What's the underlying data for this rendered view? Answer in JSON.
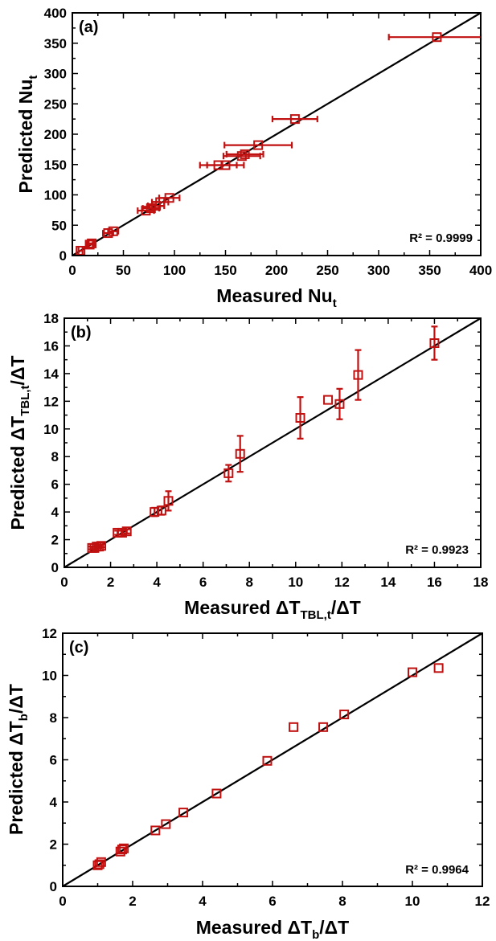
{
  "panels": [
    {
      "panel_label": "(a)",
      "r2_text": "R² = 0.9999",
      "x_title": {
        "base": "Measured Nu",
        "sub": "t",
        "suffix": ""
      },
      "y_title": {
        "base": "Predicted Nu",
        "sub": "t",
        "suffix": ""
      }
    },
    {
      "panel_label": "(b)",
      "r2_text": "R² = 0.9923",
      "x_title": {
        "base": "Measured ΔT",
        "sub": "TBL,t",
        "suffix": "/ΔT"
      },
      "y_title": {
        "base": "Predicted ΔT",
        "sub": "TBL,t",
        "suffix": "/ΔT"
      }
    },
    {
      "panel_label": "(c)",
      "r2_text": "R² = 0.9964",
      "x_title": {
        "base": "Measured ΔT",
        "sub": "b",
        "suffix": "/ΔT"
      },
      "y_title": {
        "base": "Predicted ΔT",
        "sub": "b",
        "suffix": "/ΔT"
      }
    }
  ],
  "colors": {
    "marker": "#c01010",
    "line": "#000000"
  },
  "chart_data": [
    {
      "type": "scatter",
      "title": "(a)",
      "xlabel": "Measured Nu_t",
      "ylabel": "Predicted Nu_t",
      "xlim": [
        0,
        400
      ],
      "ylim": [
        0,
        400
      ],
      "xticks": [
        0,
        50,
        100,
        150,
        200,
        250,
        300,
        350,
        400
      ],
      "yticks": [
        0,
        50,
        100,
        150,
        200,
        250,
        300,
        350,
        400
      ],
      "reference_line": "y = x",
      "annotation": "R² = 0.9999",
      "points": [
        {
          "x": 8,
          "y": 8,
          "xerr": 2,
          "yerr": 0
        },
        {
          "x": 17,
          "y": 18,
          "xerr": 3,
          "yerr": 0
        },
        {
          "x": 19,
          "y": 20,
          "xerr": 3,
          "yerr": 0
        },
        {
          "x": 35,
          "y": 37,
          "xerr": 5,
          "yerr": 0
        },
        {
          "x": 40,
          "y": 40,
          "xerr": 5,
          "yerr": 0
        },
        {
          "x": 72,
          "y": 74,
          "xerr": 8,
          "yerr": 0
        },
        {
          "x": 77,
          "y": 78,
          "xerr": 8,
          "yerr": 0
        },
        {
          "x": 82,
          "y": 82,
          "xerr": 8,
          "yerr": 0
        },
        {
          "x": 86,
          "y": 88,
          "xerr": 8,
          "yerr": 0
        },
        {
          "x": 95,
          "y": 95,
          "xerr": 10,
          "yerr": 0
        },
        {
          "x": 143,
          "y": 149,
          "xerr": 18,
          "yerr": 0
        },
        {
          "x": 150,
          "y": 149,
          "xerr": 18,
          "yerr": 0
        },
        {
          "x": 166,
          "y": 164,
          "xerr": 18,
          "yerr": 0
        },
        {
          "x": 169,
          "y": 167,
          "xerr": 18,
          "yerr": 0
        },
        {
          "x": 182,
          "y": 182,
          "xerr": 33,
          "yerr": 0
        },
        {
          "x": 218,
          "y": 225,
          "xerr": 22,
          "yerr": 0
        },
        {
          "x": 357,
          "y": 360,
          "xerr": 47,
          "yerr": 0
        }
      ]
    },
    {
      "type": "scatter",
      "title": "(b)",
      "xlabel": "Measured ΔT_TBL,t/ΔT",
      "ylabel": "Predicted ΔT_TBL,t/ΔT",
      "xlim": [
        0,
        18
      ],
      "ylim": [
        0,
        18
      ],
      "xticks": [
        0,
        2,
        4,
        6,
        8,
        10,
        12,
        14,
        16,
        18
      ],
      "yticks": [
        0,
        2,
        4,
        6,
        8,
        10,
        12,
        14,
        16,
        18
      ],
      "reference_line": "y = x",
      "annotation": "R² = 0.9923",
      "points": [
        {
          "x": 1.2,
          "y": 1.4,
          "xerr": 0,
          "yerr": 0.1
        },
        {
          "x": 1.3,
          "y": 1.4,
          "xerr": 0,
          "yerr": 0.1
        },
        {
          "x": 1.4,
          "y": 1.5,
          "xerr": 0,
          "yerr": 0.1
        },
        {
          "x": 1.5,
          "y": 1.5,
          "xerr": 0,
          "yerr": 0.1
        },
        {
          "x": 1.6,
          "y": 1.55,
          "xerr": 0,
          "yerr": 0.1
        },
        {
          "x": 2.3,
          "y": 2.5,
          "xerr": 0,
          "yerr": 0.15
        },
        {
          "x": 2.5,
          "y": 2.5,
          "xerr": 0,
          "yerr": 0.15
        },
        {
          "x": 2.7,
          "y": 2.6,
          "xerr": 0,
          "yerr": 0.15
        },
        {
          "x": 3.9,
          "y": 4.0,
          "xerr": 0,
          "yerr": 0.3
        },
        {
          "x": 4.2,
          "y": 4.1,
          "xerr": 0,
          "yerr": 0.3
        },
        {
          "x": 4.5,
          "y": 4.8,
          "xerr": 0,
          "yerr": 0.7
        },
        {
          "x": 7.1,
          "y": 6.8,
          "xerr": 0,
          "yerr": 0.6
        },
        {
          "x": 7.6,
          "y": 8.2,
          "xerr": 0,
          "yerr": 1.3
        },
        {
          "x": 10.2,
          "y": 10.8,
          "xerr": 0,
          "yerr": 1.5
        },
        {
          "x": 11.4,
          "y": 12.1,
          "xerr": 0,
          "yerr": 0
        },
        {
          "x": 11.9,
          "y": 11.8,
          "xerr": 0,
          "yerr": 1.1
        },
        {
          "x": 12.7,
          "y": 13.9,
          "xerr": 0,
          "yerr": 1.8
        },
        {
          "x": 16.0,
          "y": 16.2,
          "xerr": 0,
          "yerr": 1.2
        }
      ]
    },
    {
      "type": "scatter",
      "title": "(c)",
      "xlabel": "Measured ΔT_b/ΔT",
      "ylabel": "Predicted ΔT_b/ΔT",
      "xlim": [
        0,
        12
      ],
      "ylim": [
        0,
        12
      ],
      "xticks": [
        0,
        2,
        4,
        6,
        8,
        10,
        12
      ],
      "yticks": [
        0,
        2,
        4,
        6,
        8,
        10,
        12
      ],
      "reference_line": "y = x",
      "annotation": "R² = 0.9964",
      "points": [
        {
          "x": 1.0,
          "y": 1.0,
          "xerr": 0,
          "yerr": 0
        },
        {
          "x": 1.05,
          "y": 1.05,
          "xerr": 0,
          "yerr": 0
        },
        {
          "x": 1.1,
          "y": 1.15,
          "xerr": 0,
          "yerr": 0
        },
        {
          "x": 1.65,
          "y": 1.65,
          "xerr": 0,
          "yerr": 0
        },
        {
          "x": 1.7,
          "y": 1.75,
          "xerr": 0,
          "yerr": 0
        },
        {
          "x": 1.75,
          "y": 1.8,
          "xerr": 0,
          "yerr": 0
        },
        {
          "x": 2.65,
          "y": 2.65,
          "xerr": 0,
          "yerr": 0
        },
        {
          "x": 2.95,
          "y": 2.95,
          "xerr": 0,
          "yerr": 0
        },
        {
          "x": 3.45,
          "y": 3.5,
          "xerr": 0,
          "yerr": 0
        },
        {
          "x": 4.4,
          "y": 4.4,
          "xerr": 0,
          "yerr": 0
        },
        {
          "x": 5.85,
          "y": 5.95,
          "xerr": 0,
          "yerr": 0
        },
        {
          "x": 6.6,
          "y": 7.55,
          "xerr": 0,
          "yerr": 0
        },
        {
          "x": 7.45,
          "y": 7.55,
          "xerr": 0,
          "yerr": 0
        },
        {
          "x": 8.05,
          "y": 8.15,
          "xerr": 0,
          "yerr": 0
        },
        {
          "x": 10.0,
          "y": 10.15,
          "xerr": 0,
          "yerr": 0
        },
        {
          "x": 10.75,
          "y": 10.35,
          "xerr": 0,
          "yerr": 0
        }
      ]
    }
  ]
}
